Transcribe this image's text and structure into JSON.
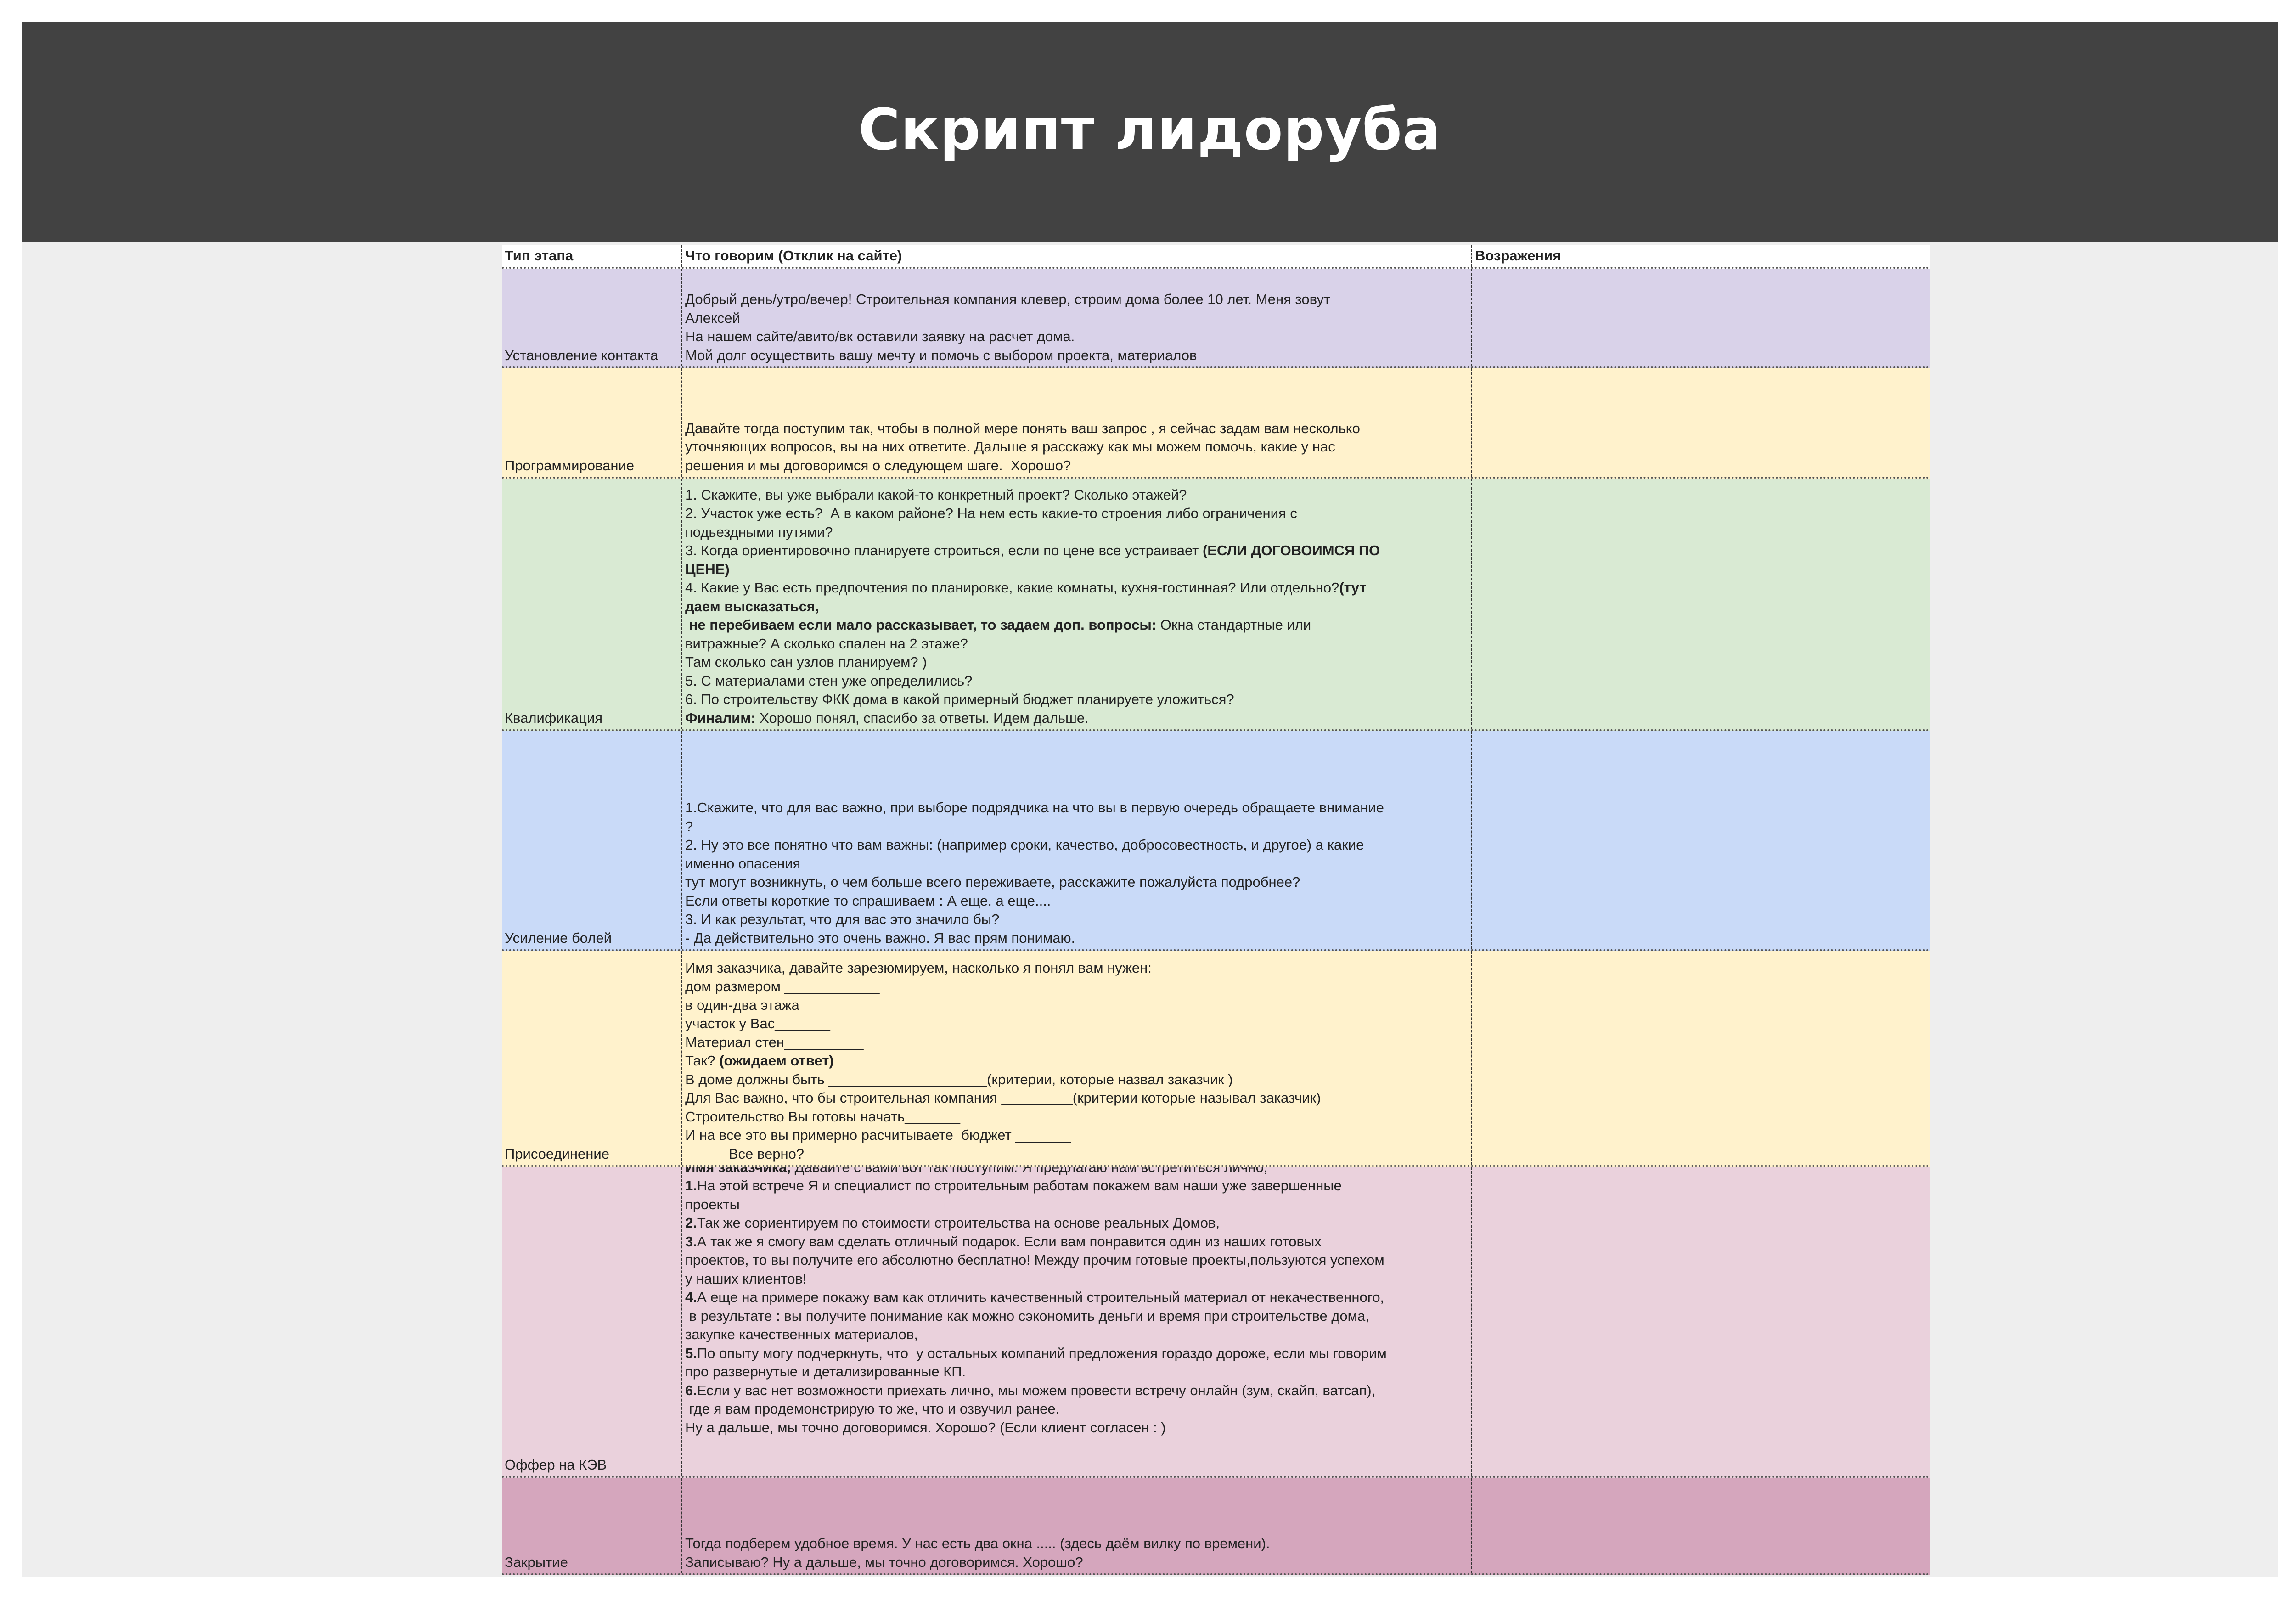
{
  "page": {
    "title": "Скрипт лидоруба",
    "header_color": "#424242"
  },
  "table": {
    "headers": [
      "Тип этапа",
      "Что говорим (Отклик на сайте)",
      "Возражения"
    ],
    "rows": [
      {
        "stage": "Установление контакта",
        "color": "#d9d2e9",
        "lines": [
          [
            {
              "t": "Добрый день/утро/вечер! Строительная компания клевер, строим дома более 10 лет. Меня зовут"
            }
          ],
          [
            {
              "t": "Алексей"
            }
          ],
          [
            {
              "t": "На нашем сайте/авито/вк оставили заявку на расчет дома."
            }
          ],
          [
            {
              "t": "Мой долг осуществить вашу мечту и помочь с выбором проекта, материалов"
            }
          ]
        ]
      },
      {
        "stage": "Программирование",
        "color": "#fff2cc",
        "lines": [
          [
            {
              "t": "Давайте тогда поступим так, чтобы в полной мере понять ваш запрос , я сейчас задам вам несколько"
            }
          ],
          [
            {
              "t": "уточняющих вопросов, вы на них ответите. Дальше я расскажу как мы можем помочь, какие у нас"
            }
          ],
          [
            {
              "t": "решения и мы договоримся о следующем шаге.  Хорошо?"
            }
          ]
        ]
      },
      {
        "stage": "Квалификация",
        "color": "#d9ead3",
        "lines": [
          [
            {
              "t": "1. Скажите, вы уже выбрали какой-то конкретный проект? Сколько этажей?"
            }
          ],
          [
            {
              "t": "2. Участок уже есть?  А в каком районе? На нем есть какие-то строения либо ограничения с"
            }
          ],
          [
            {
              "t": "подьездными путями?"
            }
          ],
          [
            {
              "t": "3. Когда ориентировочно планируете строиться, если по цене все устраивает "
            },
            {
              "t": "(ЕСЛИ ДОГОВОИМСЯ ПО",
              "b": true
            }
          ],
          [
            {
              "t": "ЦЕНЕ)",
              "b": true
            }
          ],
          [
            {
              "t": "4. Какие у Вас есть предпочтения по планировке, какие комнаты, кухня-гостинная? Или отдельно?"
            },
            {
              "t": "(тут",
              "b": true
            }
          ],
          [
            {
              "t": "даем высказаться,",
              "b": true
            }
          ],
          [
            {
              "t": " не перебиваем если мало рассказывает, то задаем доп. вопросы:",
              "b": true
            },
            {
              "t": " Окна стандартные или"
            }
          ],
          [
            {
              "t": "витражные? А сколько спален на 2 этаже?"
            }
          ],
          [
            {
              "t": "Там сколько сан узлов планируем? )"
            }
          ],
          [
            {
              "t": "5. С материалами стен уже определились?"
            }
          ],
          [
            {
              "t": "6. По строительству ФКК дома в какой примерный бюджет планируете уложиться?"
            }
          ],
          [
            {
              "t": "Финалим:",
              "b": true
            },
            {
              "t": " Хорошо понял, спасибо за ответы. Идем дальше."
            }
          ]
        ]
      },
      {
        "stage": "Усиление болей",
        "color": "#c9daf8",
        "lines": [
          [
            {
              "t": "1.Скажите, что для вас важно, при выборе подрядчика на что вы в первую очередь обращаете внимание"
            }
          ],
          [
            {
              "t": "?"
            }
          ],
          [
            {
              "t": "2. Ну это все понятно что вам важны: (например сроки, качество, добросовестность, и другое) а какие"
            }
          ],
          [
            {
              "t": "именно опасения"
            }
          ],
          [
            {
              "t": "тут могут возникнуть, о чем больше всего переживаете, расскажите пожалуйста подробнее?"
            }
          ],
          [
            {
              "t": "Если ответы короткие то спрашиваем : А еще, а еще...."
            }
          ],
          [
            {
              "t": "3. И как результат, что для вас это значило бы?"
            }
          ],
          [
            {
              "t": "- Да действительно это очень важно. Я вас прям понимаю."
            }
          ]
        ]
      },
      {
        "stage": "Присоединение",
        "color": "#fff2cc",
        "lines": [
          [
            {
              "t": "Имя заказчика, давайте зарезюмируем, насколько я понял вам нужен:"
            }
          ],
          [
            {
              "t": "дом размером ____________"
            }
          ],
          [
            {
              "t": "в один-два этажа"
            }
          ],
          [
            {
              "t": "участок у Вас_______"
            }
          ],
          [
            {
              "t": "Материал стен__________"
            }
          ],
          [
            {
              "t": "Так? "
            },
            {
              "t": "(ожидаем ответ)",
              "b": true
            }
          ],
          [
            {
              "t": "В доме должны быть ____________________(критерии, которые назвал заказчик )"
            }
          ],
          [
            {
              "t": "Для Вас важно, что бы строительная компания _________(критерии которые называл заказчик)"
            }
          ],
          [
            {
              "t": "Строительство Вы готовы начать_______"
            }
          ],
          [
            {
              "t": "И на все это вы примерно расчитываете  бюджет _______"
            }
          ],
          [
            {
              "t": "_____ Все верно?"
            }
          ]
        ]
      },
      {
        "stage": "Оффер на КЭВ",
        "color": "#ead1dc",
        "lines": [
          [
            {
              "t": "Имя заказчика,",
              "b": true
            },
            {
              "t": " Давайте с вами вот так поступим. Я предлагаю нам встретиться лично,"
            }
          ],
          [
            {
              "t": "1.",
              "b": true
            },
            {
              "t": "На этой встрече Я и специалист по строительным работам покажем вам наши уже завершенные"
            }
          ],
          [
            {
              "t": "проекты"
            }
          ],
          [
            {
              "t": "2.",
              "b": true
            },
            {
              "t": "Так же сориентируем по стоимости строительства на основе реальных Домов,"
            }
          ],
          [
            {
              "t": "3.",
              "b": true
            },
            {
              "t": "А так же я смогу вам сделать отличный подарок. Если вам понравится один из наших готовых"
            }
          ],
          [
            {
              "t": "проектов, то вы получите его абсолютно бесплатно! Между прочим готовые проекты,пользуются успехом"
            }
          ],
          [
            {
              "t": "у наших клиентов!"
            }
          ],
          [
            {
              "t": "4.",
              "b": true
            },
            {
              "t": "А еще на примере покажу вам как отличить качественный строительный материал от некачественного,"
            }
          ],
          [
            {
              "t": " в результате : вы получите понимание как можно сэкономить деньги и время при строительстве дома,"
            }
          ],
          [
            {
              "t": "закупке качественных материалов,"
            }
          ],
          [
            {
              "t": "5.",
              "b": true
            },
            {
              "t": "По опыту могу подчеркнуть, что  у остальных компаний предложения гораздо дороже, если мы говорим"
            }
          ],
          [
            {
              "t": "про развернутые и детализированные КП."
            }
          ],
          [
            {
              "t": "6.",
              "b": true
            },
            {
              "t": "Если у вас нет возможности приехать лично, мы можем провести встречу онлайн (зум, скайп, ватсап),"
            }
          ],
          [
            {
              "t": " где я вам продемонстрирую то же, что и озвучил ранее."
            }
          ],
          [
            {
              "t": "Ну а дальше, мы точно договоримся. Хорошо? (Если клиент согласен : )"
            }
          ],
          [
            {
              "t": " "
            }
          ],
          [
            {
              "t": " "
            }
          ]
        ]
      },
      {
        "stage": "Закрытие",
        "color": "#d5a6bd",
        "lines": [
          [
            {
              "t": "Тогда подберем удобное время. У нас есть два окна ..... (здесь даём вилку по времени)."
            }
          ],
          [
            {
              "t": "Записываю? Ну а дальше, мы точно договоримся. Хорошо?"
            }
          ]
        ]
      }
    ]
  }
}
